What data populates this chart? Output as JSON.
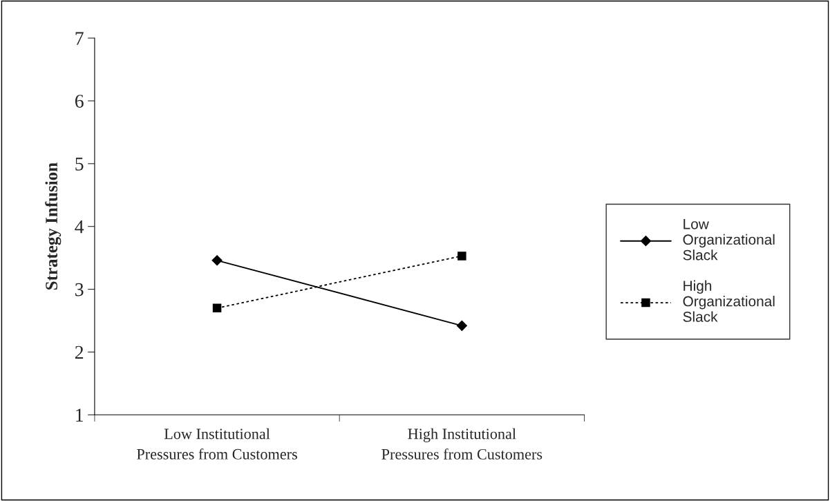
{
  "chart_data": {
    "type": "line",
    "ylabel": "Strategy Infusion",
    "categories": [
      "Low Institutional\nPressures from Customers",
      "High Institutional\nPressures from Customers"
    ],
    "series": [
      {
        "name": "Low\nOrganizational\nSlack",
        "color": "#000000",
        "values": [
          3.46,
          2.42
        ],
        "marker": "diamond",
        "line_style": "solid"
      },
      {
        "name": "High\nOrganizational\nSlack",
        "color": "#000000",
        "values": [
          2.7,
          3.53
        ],
        "marker": "square",
        "line_style": "dotted"
      }
    ],
    "ylim": [
      1,
      7
    ],
    "yticks": [
      1,
      2,
      3,
      4,
      5,
      6,
      7
    ],
    "grid": false,
    "legend": "right"
  }
}
